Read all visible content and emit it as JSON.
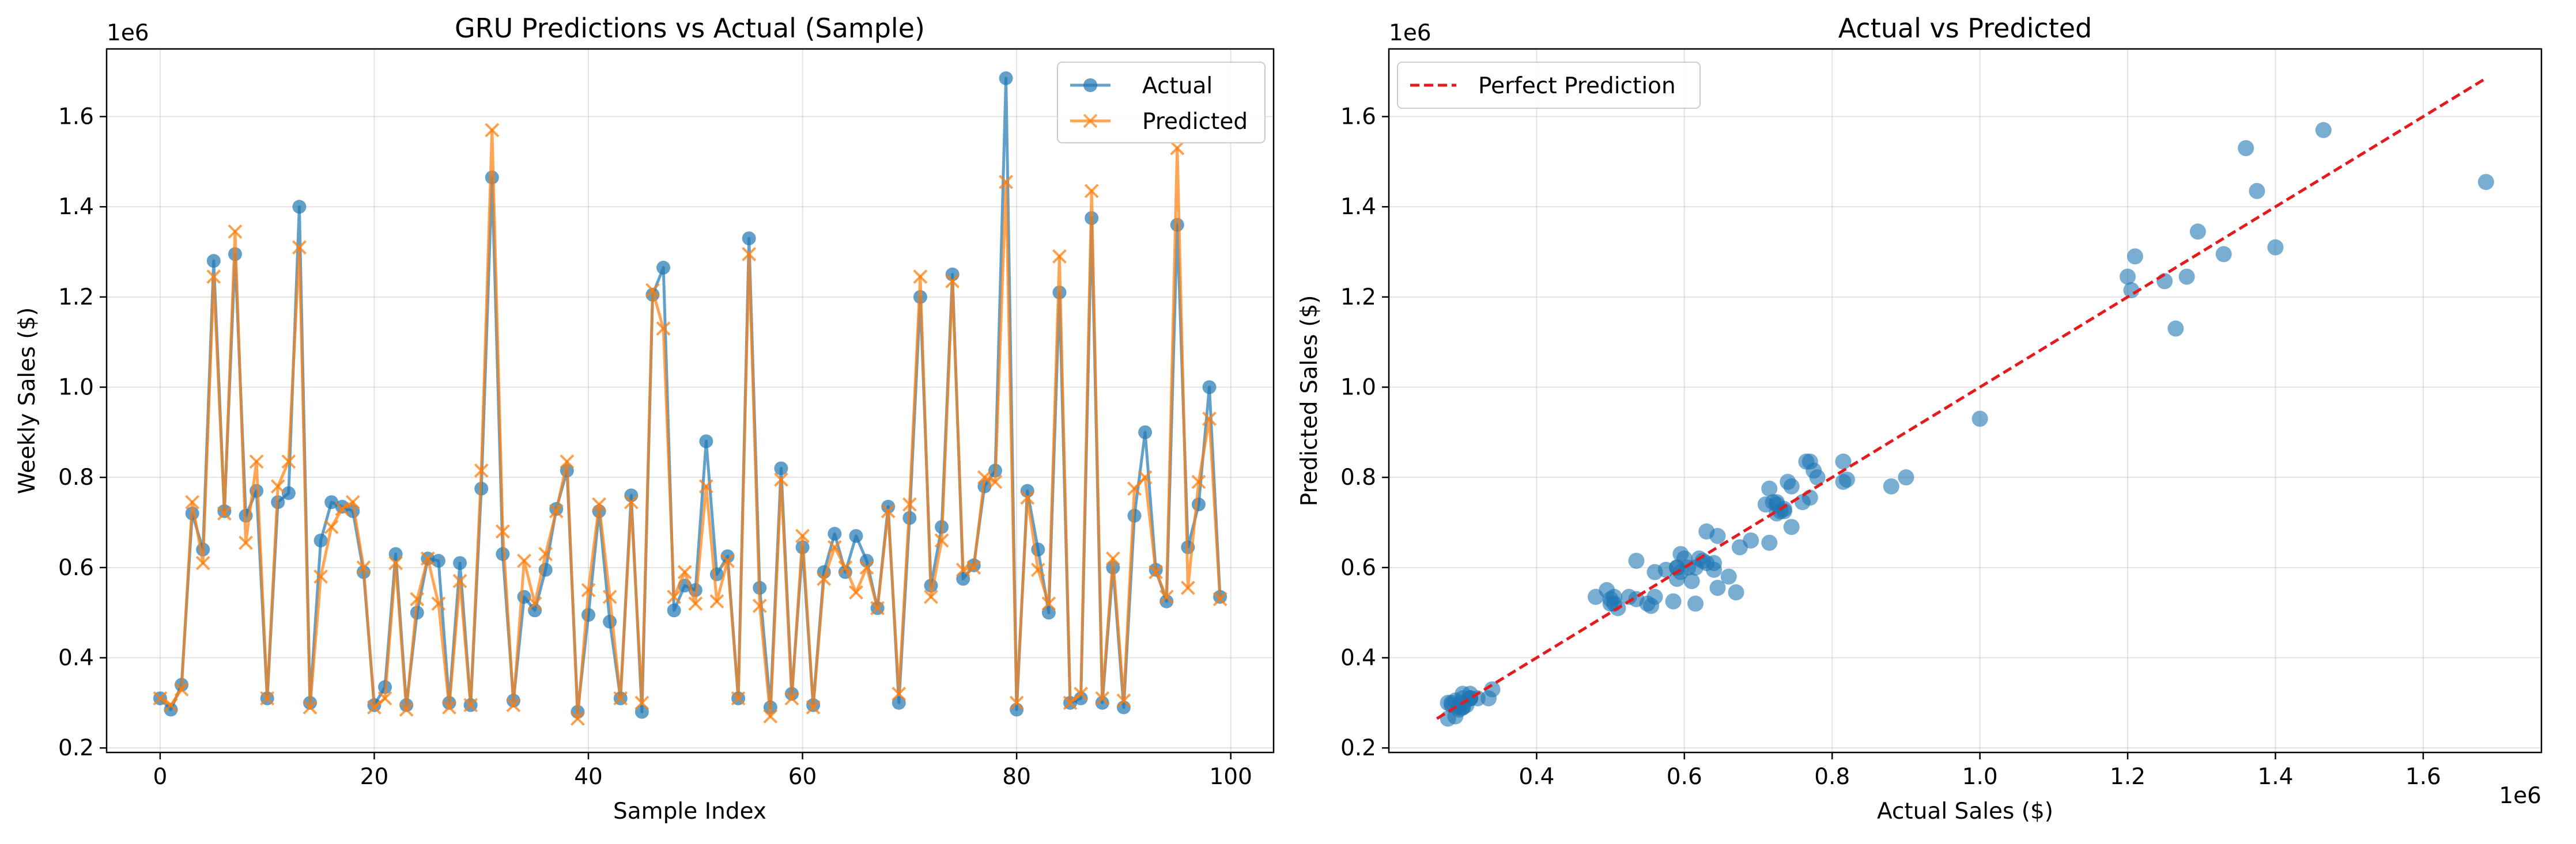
{
  "chart_data": [
    {
      "type": "line",
      "title": "GRU Predictions vs Actual (Sample)",
      "xlabel": "Sample Index",
      "ylabel": "Weekly Sales ($)",
      "y_offset_label": "1e6",
      "xlim": [
        -5,
        104
      ],
      "ylim": [
        0.19,
        1.75
      ],
      "x_ticks": [
        0,
        20,
        40,
        60,
        80,
        100
      ],
      "y_ticks": [
        0.2,
        0.4,
        0.6,
        0.8,
        1.0,
        1.2,
        1.4,
        1.6
      ],
      "grid": true,
      "legend_position": "top-right",
      "x": [
        0,
        1,
        2,
        3,
        4,
        5,
        6,
        7,
        8,
        9,
        10,
        11,
        12,
        13,
        14,
        15,
        16,
        17,
        18,
        19,
        20,
        21,
        22,
        23,
        24,
        25,
        26,
        27,
        28,
        29,
        30,
        31,
        32,
        33,
        34,
        35,
        36,
        37,
        38,
        39,
        40,
        41,
        42,
        43,
        44,
        45,
        46,
        47,
        48,
        49,
        50,
        51,
        52,
        53,
        54,
        55,
        56,
        57,
        58,
        59,
        60,
        61,
        62,
        63,
        64,
        65,
        66,
        67,
        68,
        69,
        70,
        71,
        72,
        73,
        74,
        75,
        76,
        77,
        78,
        79,
        80,
        81,
        82,
        83,
        84,
        85,
        86,
        87,
        88,
        89,
        90,
        91,
        92,
        93,
        94,
        95,
        96,
        97,
        98,
        99
      ],
      "series": [
        {
          "name": "Actual",
          "color": "#1f77b4",
          "marker": "circle",
          "values": [
            0.31,
            0.285,
            0.34,
            0.72,
            0.64,
            1.28,
            0.725,
            1.295,
            0.715,
            0.77,
            0.31,
            0.745,
            0.765,
            1.4,
            0.3,
            0.66,
            0.745,
            0.735,
            0.725,
            0.59,
            0.295,
            0.335,
            0.63,
            0.295,
            0.5,
            0.62,
            0.615,
            0.3,
            0.61,
            0.295,
            0.775,
            1.465,
            0.63,
            0.305,
            0.535,
            0.505,
            0.595,
            0.73,
            0.815,
            0.28,
            0.495,
            0.725,
            0.48,
            0.31,
            0.76,
            0.28,
            1.205,
            1.265,
            0.505,
            0.56,
            0.55,
            0.88,
            0.585,
            0.625,
            0.31,
            1.33,
            0.555,
            0.29,
            0.82,
            0.32,
            0.645,
            0.295,
            0.59,
            0.675,
            0.59,
            0.67,
            0.615,
            0.51,
            0.735,
            0.3,
            0.71,
            1.2,
            0.56,
            0.69,
            1.25,
            0.575,
            0.605,
            0.78,
            0.815,
            1.685,
            0.285,
            0.77,
            0.64,
            0.5,
            1.21,
            0.3,
            0.31,
            1.375,
            0.3,
            0.6,
            0.29,
            0.715,
            0.9,
            0.595,
            0.525,
            1.36,
            0.645,
            0.74,
            1.0,
            0.535
          ]
        },
        {
          "name": "Predicted",
          "color": "#ff7f0e",
          "marker": "x",
          "values": [
            0.31,
            0.295,
            0.33,
            0.745,
            0.61,
            1.245,
            0.72,
            1.345,
            0.655,
            0.835,
            0.31,
            0.78,
            0.835,
            1.31,
            0.29,
            0.58,
            0.69,
            0.73,
            0.745,
            0.6,
            0.29,
            0.31,
            0.61,
            0.285,
            0.53,
            0.62,
            0.52,
            0.29,
            0.57,
            0.295,
            0.815,
            1.57,
            0.68,
            0.295,
            0.615,
            0.52,
            0.63,
            0.725,
            0.835,
            0.265,
            0.55,
            0.74,
            0.535,
            0.31,
            0.745,
            0.3,
            1.215,
            1.13,
            0.535,
            0.59,
            0.52,
            0.78,
            0.525,
            0.615,
            0.31,
            1.295,
            0.515,
            0.27,
            0.795,
            0.31,
            0.67,
            0.29,
            0.575,
            0.645,
            0.6,
            0.545,
            0.6,
            0.51,
            0.725,
            0.32,
            0.74,
            1.245,
            0.535,
            0.66,
            1.235,
            0.595,
            0.6,
            0.8,
            0.79,
            1.455,
            0.3,
            0.755,
            0.595,
            0.52,
            1.29,
            0.3,
            0.32,
            1.435,
            0.31,
            0.62,
            0.305,
            0.775,
            0.8,
            0.59,
            0.535,
            1.53,
            0.555,
            0.79,
            0.93,
            0.53
          ]
        }
      ]
    },
    {
      "type": "scatter",
      "title": "Actual vs Predicted",
      "xlabel": "Actual Sales ($)",
      "ylabel": "Predicted Sales ($)",
      "x_offset_label": "1e6",
      "y_offset_label": "1e6",
      "xlim": [
        0.2,
        1.76
      ],
      "ylim": [
        0.19,
        1.75
      ],
      "x_ticks": [
        0.4,
        0.6,
        0.8,
        1.0,
        1.2,
        1.4,
        1.6
      ],
      "y_ticks": [
        0.2,
        0.4,
        0.6,
        0.8,
        1.0,
        1.2,
        1.4,
        1.6
      ],
      "grid": true,
      "legend_position": "top-left",
      "point_color": "#1f77b4",
      "reference_line": {
        "name": "Perfect Prediction",
        "color": "#e41a1c",
        "style": "dashed",
        "from": [
          0.265,
          0.265
        ],
        "to": [
          1.685,
          1.685
        ]
      },
      "points_ref": "uses Actual (x) and Predicted (y) series from chart 1"
    }
  ]
}
